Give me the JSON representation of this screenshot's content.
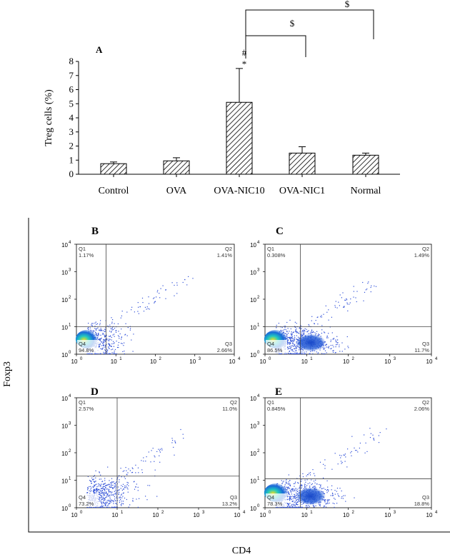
{
  "panel_a": {
    "label": "A",
    "significance": {
      "above_bar": [
        "#",
        "*"
      ],
      "bracket_symbol": "$"
    }
  },
  "flow_panels": [
    {
      "label": "B",
      "q1": "1.17%",
      "q2": "1.41%",
      "q3": "2.66%",
      "q4": "94.8%",
      "h_gate": 1.0,
      "v_gate": 0.75,
      "pop": "normal"
    },
    {
      "label": "C",
      "q1": "0.308%",
      "q2": "1.49%",
      "q3": "11.7%",
      "q4": "86.5%",
      "h_gate": 1.0,
      "v_gate": 0.85,
      "pop": "activated"
    },
    {
      "label": "D",
      "q1": "2.57%",
      "q2": "11.0%",
      "q3": "13.2%",
      "q4": "73.2%",
      "h_gate": 1.15,
      "v_gate": 1.0,
      "pop": "sparse"
    },
    {
      "label": "E",
      "q1": "0.845%",
      "q2": "2.06%",
      "q3": "18.8%",
      "q4": "78.3%",
      "h_gate": 1.05,
      "v_gate": 0.85,
      "pop": "activated"
    }
  ],
  "flow_axes": {
    "ticks": [
      "10",
      "10",
      "10",
      "10",
      "10"
    ],
    "exponents": [
      "0",
      "1",
      "2",
      "3",
      "4"
    ],
    "quadrant_names": [
      "Q1",
      "Q2",
      "Q3",
      "Q4"
    ],
    "x_label": "CD4",
    "y_label": "Foxp3"
  },
  "colors": {
    "bar_hatch": "#000000",
    "dots": "#3050d8",
    "dense": "#00b0c8",
    "core": "#e8e020"
  },
  "chart_data": {
    "type": "bar",
    "categories": [
      "Control",
      "OVA",
      "OVA-NIC10",
      "OVA-NIC1",
      "Normal"
    ],
    "values": [
      0.75,
      0.95,
      5.1,
      1.5,
      1.35
    ],
    "errors": [
      0.12,
      0.22,
      2.4,
      0.45,
      0.15
    ],
    "ylabel": "Treg cells (%)",
    "ylim": [
      0,
      8
    ],
    "yticks": [
      0,
      1,
      2,
      3,
      4,
      5,
      6,
      7,
      8
    ],
    "grid": false
  }
}
